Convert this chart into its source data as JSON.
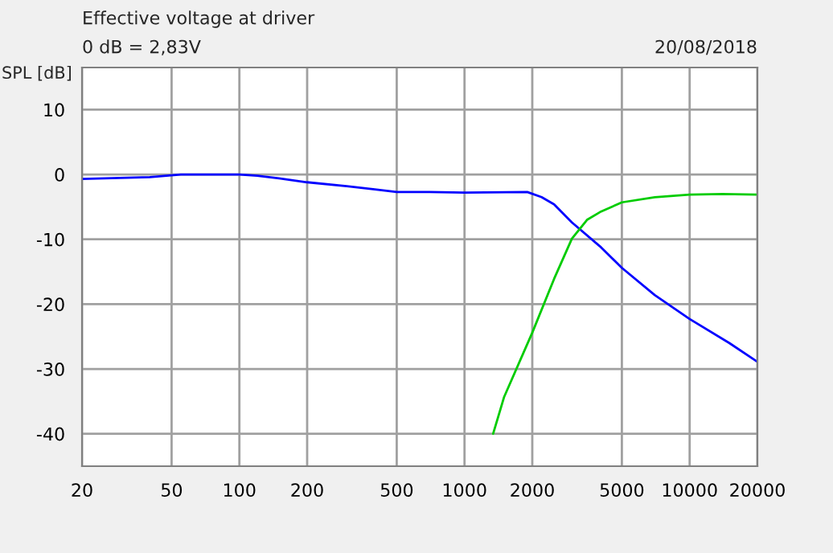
{
  "chart_data": {
    "type": "line",
    "title": "Effective voltage at driver",
    "subtitle": "0 dB = 2,83V",
    "annotations": [
      "20/08/2018"
    ],
    "ylabel": "SPL [dB]",
    "log": "x",
    "xlim": [
      20,
      20000
    ],
    "xticks": [
      20,
      50,
      100,
      200,
      500,
      1000,
      2000,
      5000,
      10000,
      20000
    ],
    "ylim": [
      -45,
      16.5
    ],
    "yticks": [
      -40,
      -30,
      -20,
      -10,
      0,
      10
    ],
    "grid": true,
    "marker": "none",
    "line_style": "solid",
    "series": [
      {
        "color": "#0000ff",
        "x": [
          20,
          40,
          55,
          100,
          120,
          150,
          200,
          300,
          400,
          500,
          700,
          1000,
          1900,
          2200,
          2500,
          3000,
          4000,
          5000,
          7000,
          10000,
          15000,
          20000
        ],
        "values": [
          -0.7,
          -0.4,
          0,
          0,
          -0.2,
          -0.6,
          -1.2,
          -1.8,
          -2.3,
          -2.7,
          -2.7,
          -2.8,
          -2.7,
          -3.5,
          -4.6,
          -7.4,
          -11.1,
          -14.4,
          -18.6,
          -22.3,
          -26,
          -28.9
        ]
      },
      {
        "color": "#00cc00",
        "x": [
          1340,
          1500,
          2000,
          2500,
          3000,
          3500,
          4000,
          5000,
          7000,
          10000,
          14000,
          20000
        ],
        "values": [
          -40,
          -34.3,
          -24.4,
          -16.1,
          -9.9,
          -7.0,
          -5.8,
          -4.3,
          -3.5,
          -3.1,
          -3.0,
          -3.1
        ]
      }
    ]
  }
}
